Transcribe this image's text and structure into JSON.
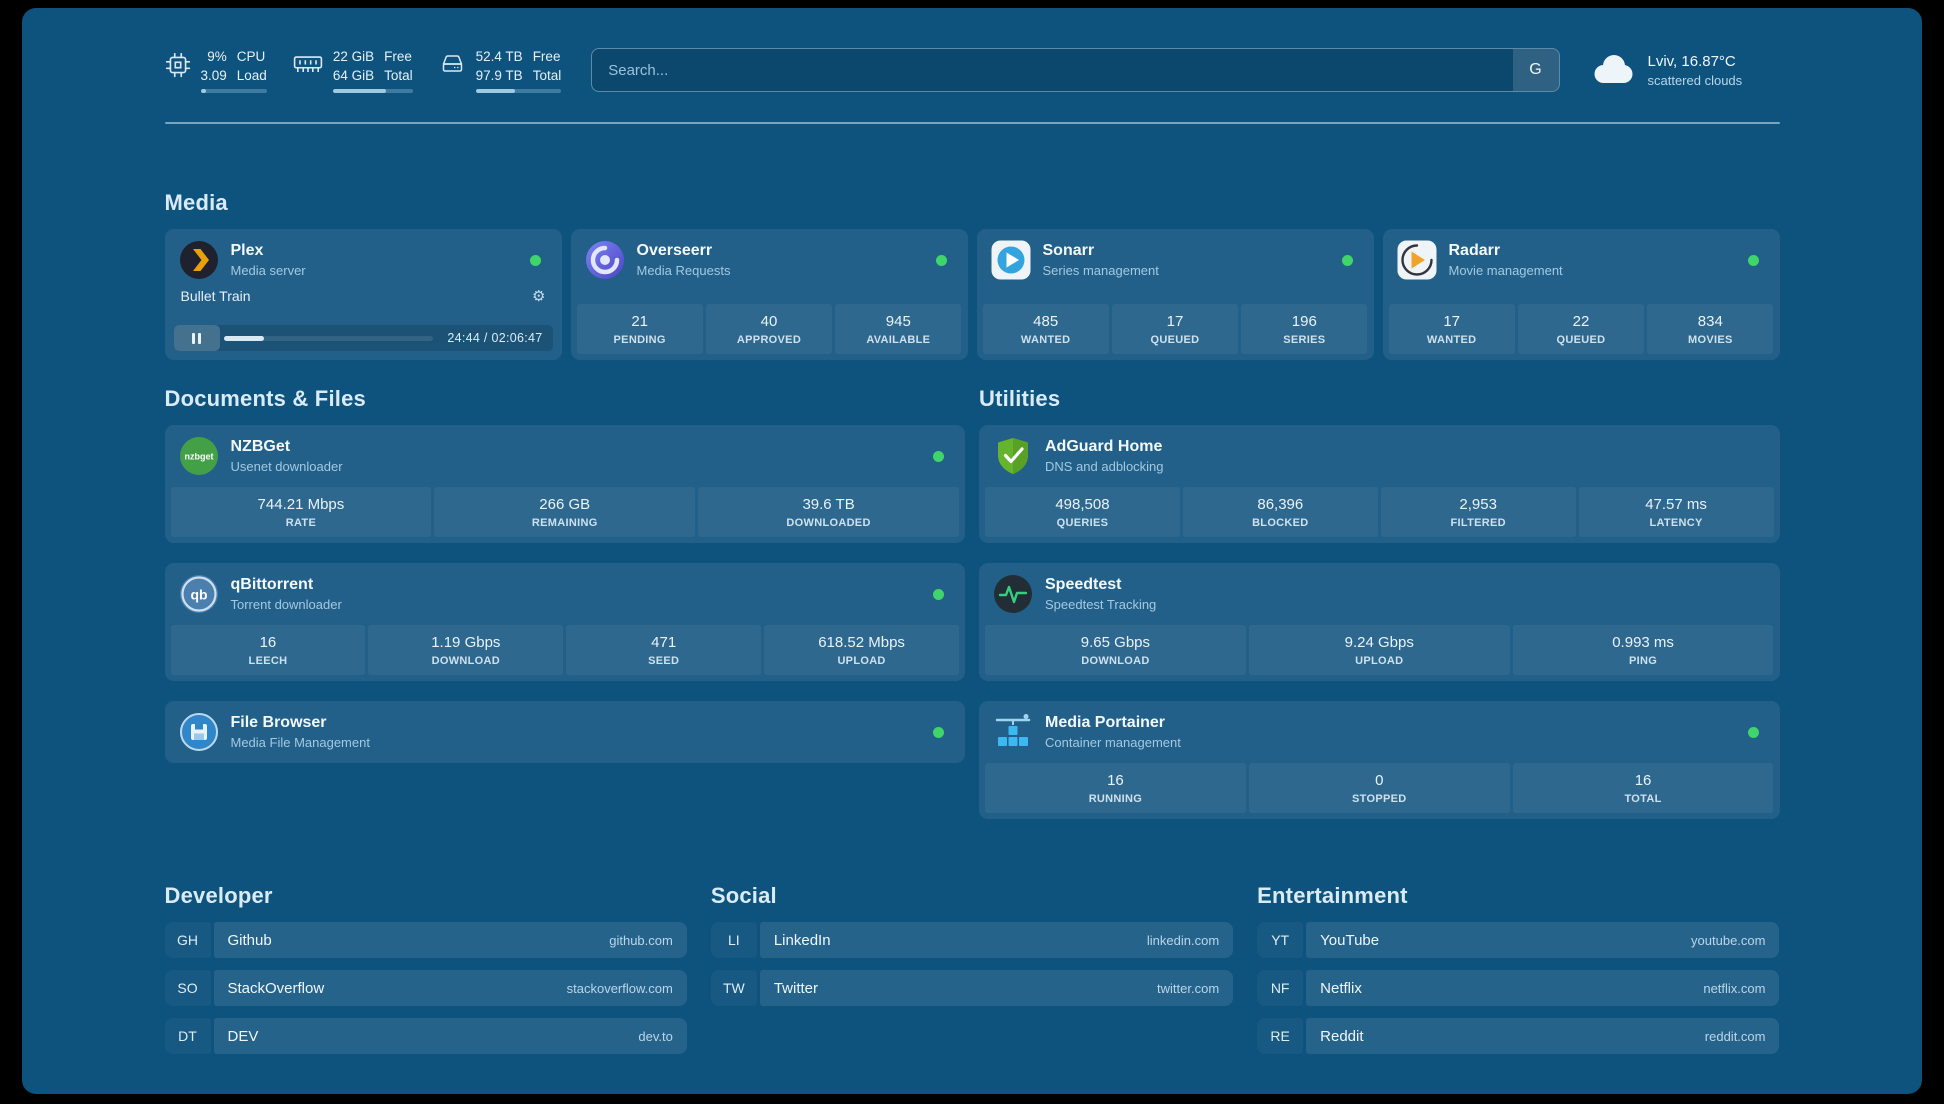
{
  "colors": {
    "status_online": "#3fd56b",
    "background": "#0e527e"
  },
  "topbar": {
    "resources": [
      {
        "icon": "cpu-icon",
        "rows": [
          {
            "value": "9%",
            "label": "CPU"
          },
          {
            "value": "3.09",
            "label": "Load"
          }
        ],
        "progress_pct": 9
      },
      {
        "icon": "memory-icon",
        "rows": [
          {
            "value": "22 GiB",
            "label": "Free"
          },
          {
            "value": "64 GiB",
            "label": "Total"
          }
        ],
        "progress_pct": 66
      },
      {
        "icon": "disk-icon",
        "rows": [
          {
            "value": "52.4 TB",
            "label": "Free"
          },
          {
            "value": "97.9 TB",
            "label": "Total"
          }
        ],
        "progress_pct": 46
      }
    ],
    "search": {
      "placeholder": "Search...",
      "button_label": "G"
    },
    "weather": {
      "icon": "cloud-icon",
      "location": "Lviv, 16.87°C",
      "condition": "scattered clouds"
    }
  },
  "sections": [
    {
      "id": "media",
      "title": "Media",
      "cards": [
        {
          "icon": "plex-icon",
          "title": "Plex",
          "subtitle": "Media server",
          "online": true,
          "player": {
            "track_title": "Bullet Train",
            "time": "24:44 / 02:06:47",
            "progress_pct": 19.5
          }
        },
        {
          "icon": "overseerr-icon",
          "title": "Overseerr",
          "subtitle": "Media Requests",
          "online": true,
          "stats": [
            {
              "value": "21",
              "label": "PENDING"
            },
            {
              "value": "40",
              "label": "APPROVED"
            },
            {
              "value": "945",
              "label": "AVAILABLE"
            }
          ]
        },
        {
          "icon": "sonarr-icon",
          "title": "Sonarr",
          "subtitle": "Series management",
          "online": true,
          "stats": [
            {
              "value": "485",
              "label": "WANTED"
            },
            {
              "value": "17",
              "label": "QUEUED"
            },
            {
              "value": "196",
              "label": "SERIES"
            }
          ]
        },
        {
          "icon": "radarr-icon",
          "title": "Radarr",
          "subtitle": "Movie management",
          "online": true,
          "stats": [
            {
              "value": "17",
              "label": "WANTED"
            },
            {
              "value": "22",
              "label": "QUEUED"
            },
            {
              "value": "834",
              "label": "MOVIES"
            }
          ]
        }
      ]
    },
    {
      "id": "documents",
      "title": "Documents & Files",
      "cards": [
        {
          "icon": "nzbget-icon",
          "title": "NZBGet",
          "subtitle": "Usenet downloader",
          "online": true,
          "stats": [
            {
              "value": "744.21 Mbps",
              "label": "RATE"
            },
            {
              "value": "266 GB",
              "label": "REMAINING"
            },
            {
              "value": "39.6 TB",
              "label": "DOWNLOADED"
            }
          ]
        },
        {
          "icon": "qbittorrent-icon",
          "title": "qBittorrent",
          "subtitle": "Torrent downloader",
          "online": true,
          "stats": [
            {
              "value": "16",
              "label": "LEECH"
            },
            {
              "value": "1.19 Gbps",
              "label": "DOWNLOAD"
            },
            {
              "value": "471",
              "label": "SEED"
            },
            {
              "value": "618.52 Mbps",
              "label": "UPLOAD"
            }
          ]
        },
        {
          "icon": "filebrowser-icon",
          "title": "File Browser",
          "subtitle": "Media File Management",
          "online": true
        }
      ]
    },
    {
      "id": "utilities",
      "title": "Utilities",
      "cards": [
        {
          "icon": "adguard-icon",
          "title": "AdGuard Home",
          "subtitle": "DNS and adblocking",
          "online": false,
          "stats": [
            {
              "value": "498,508",
              "label": "QUERIES"
            },
            {
              "value": "86,396",
              "label": "BLOCKED"
            },
            {
              "value": "2,953",
              "label": "FILTERED"
            },
            {
              "value": "47.57 ms",
              "label": "LATENCY"
            }
          ]
        },
        {
          "icon": "speedtest-icon",
          "title": "Speedtest",
          "subtitle": "Speedtest Tracking",
          "online": false,
          "stats": [
            {
              "value": "9.65 Gbps",
              "label": "DOWNLOAD"
            },
            {
              "value": "9.24 Gbps",
              "label": "UPLOAD"
            },
            {
              "value": "0.993 ms",
              "label": "PING"
            }
          ]
        },
        {
          "icon": "portainer-icon",
          "title": "Media Portainer",
          "subtitle": "Container management",
          "online": true,
          "stats": [
            {
              "value": "16",
              "label": "RUNNING"
            },
            {
              "value": "0",
              "label": "STOPPED"
            },
            {
              "value": "16",
              "label": "TOTAL"
            }
          ]
        }
      ]
    }
  ],
  "bookmarks": [
    {
      "title": "Developer",
      "items": [
        {
          "abbr": "GH",
          "name": "Github",
          "domain": "github.com"
        },
        {
          "abbr": "SO",
          "name": "StackOverflow",
          "domain": "stackoverflow.com"
        },
        {
          "abbr": "DT",
          "name": "DEV",
          "domain": "dev.to"
        }
      ]
    },
    {
      "title": "Social",
      "items": [
        {
          "abbr": "LI",
          "name": "LinkedIn",
          "domain": "linkedin.com"
        },
        {
          "abbr": "TW",
          "name": "Twitter",
          "domain": "twitter.com"
        }
      ]
    },
    {
      "title": "Entertainment",
      "items": [
        {
          "abbr": "YT",
          "name": "YouTube",
          "domain": "youtube.com"
        },
        {
          "abbr": "NF",
          "name": "Netflix",
          "domain": "netflix.com"
        },
        {
          "abbr": "RE",
          "name": "Reddit",
          "domain": "reddit.com"
        }
      ]
    }
  ]
}
